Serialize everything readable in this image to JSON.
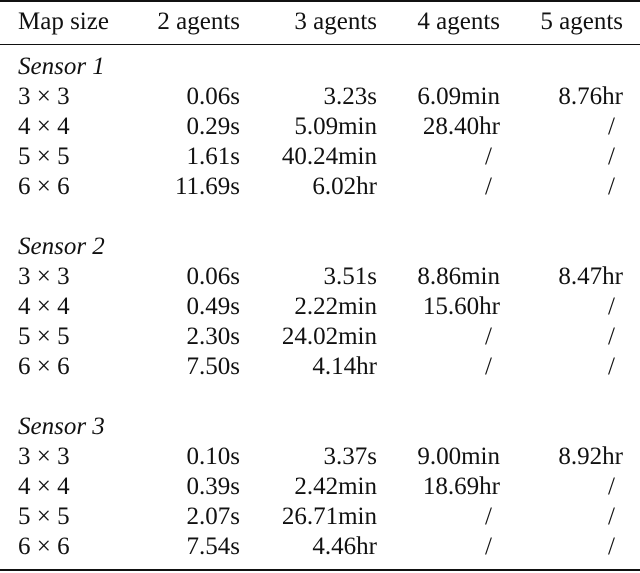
{
  "table": {
    "headers": [
      "Map size",
      "2 agents",
      "3 agents",
      "4 agents",
      "5 agents"
    ],
    "groups": [
      {
        "name": "Sensor 1",
        "rows": [
          {
            "size": "3 × 3",
            "values": [
              "0.06s",
              "3.23s",
              "6.09min",
              "8.76hr"
            ]
          },
          {
            "size": "4 × 4",
            "values": [
              "0.29s",
              "5.09min",
              "28.40hr",
              "/"
            ]
          },
          {
            "size": "5 × 5",
            "values": [
              "1.61s",
              "40.24min",
              "/",
              "/"
            ]
          },
          {
            "size": "6 × 6",
            "values": [
              "11.69s",
              "6.02hr",
              "/",
              "/"
            ]
          }
        ]
      },
      {
        "name": "Sensor 2",
        "rows": [
          {
            "size": "3 × 3",
            "values": [
              "0.06s",
              "3.51s",
              "8.86min",
              "8.47hr"
            ]
          },
          {
            "size": "4 × 4",
            "values": [
              "0.49s",
              "2.22min",
              "15.60hr",
              "/"
            ]
          },
          {
            "size": "5 × 5",
            "values": [
              "2.30s",
              "24.02min",
              "/",
              "/"
            ]
          },
          {
            "size": "6 × 6",
            "values": [
              "7.50s",
              "4.14hr",
              "/",
              "/"
            ]
          }
        ]
      },
      {
        "name": "Sensor 3",
        "rows": [
          {
            "size": "3 × 3",
            "values": [
              "0.10s",
              "3.37s",
              "9.00min",
              "8.92hr"
            ]
          },
          {
            "size": "4 × 4",
            "values": [
              "0.39s",
              "2.42min",
              "18.69hr",
              "/"
            ]
          },
          {
            "size": "5 × 5",
            "values": [
              "2.07s",
              "26.71min",
              "/",
              "/"
            ]
          },
          {
            "size": "6 × 6",
            "values": [
              "7.54s",
              "4.46hr",
              "/",
              "/"
            ]
          }
        ]
      }
    ]
  }
}
